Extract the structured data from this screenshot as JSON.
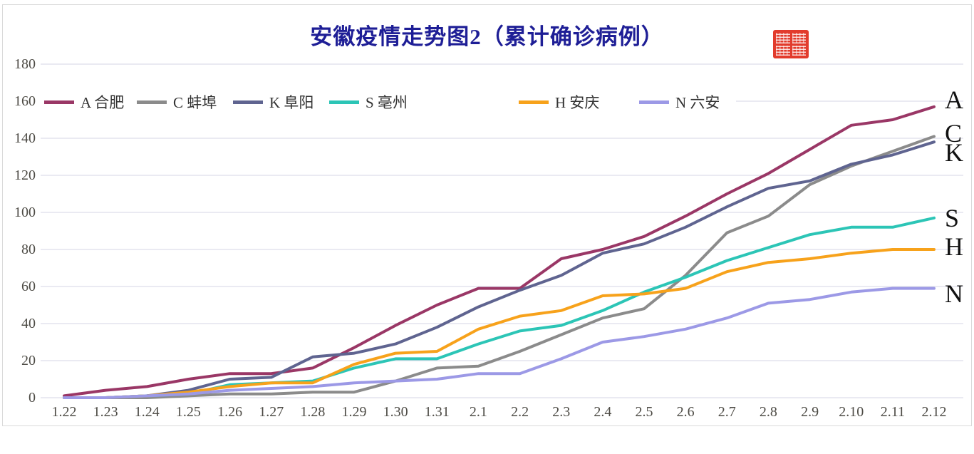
{
  "title": {
    "text": "安徽疫情走势图2（累计确诊病例）"
  },
  "seal": {
    "color": "#e23b2c"
  },
  "colors": {
    "grid": "#d5d5e4",
    "axis_text": "#4d4b45",
    "title": "#1e1e96"
  },
  "y_axis": {
    "ticks": [
      "180",
      "160",
      "140",
      "120",
      "100",
      "80",
      "60",
      "40",
      "20",
      "0"
    ]
  },
  "chart_data": {
    "type": "line",
    "title": "安徽疫情走势图2（累计确诊病例）",
    "x": [
      "1.22",
      "1.23",
      "1.24",
      "1.25",
      "1.26",
      "1.27",
      "1.28",
      "1.29",
      "1.30",
      "1.31",
      "2.1",
      "2.2",
      "2.3",
      "2.4",
      "2.5",
      "2.6",
      "2.7",
      "2.8",
      "2.9",
      "2.10",
      "2.11",
      "2.12"
    ],
    "ylim": [
      0,
      180
    ],
    "ytick_step": 20,
    "grid": "horizontal",
    "legend_position": "top",
    "series": [
      {
        "end_label": "A",
        "legend": "A 合肥",
        "city": "合肥",
        "color": "#9a3766",
        "values": [
          1,
          4,
          6,
          10,
          13,
          13,
          16,
          27,
          39,
          50,
          59,
          59,
          75,
          80,
          87,
          98,
          110,
          121,
          134,
          147,
          150,
          157
        ]
      },
      {
        "end_label": "C",
        "legend": "C 蚌埠",
        "city": "蚌埠",
        "color": "#8b8b8b",
        "values": [
          0,
          0,
          0,
          1,
          2,
          2,
          3,
          3,
          9,
          16,
          17,
          25,
          34,
          43,
          48,
          66,
          89,
          98,
          115,
          125,
          133,
          141
        ]
      },
      {
        "end_label": "K",
        "legend": "K 阜阳",
        "city": "阜阳",
        "color": "#5f6490",
        "values": [
          0,
          0,
          1,
          4,
          10,
          11,
          22,
          24,
          29,
          38,
          49,
          58,
          66,
          78,
          83,
          92,
          103,
          113,
          117,
          126,
          131,
          138
        ]
      },
      {
        "end_label": "S",
        "legend": "S 亳州",
        "city": "亳州",
        "color": "#2cc5b6",
        "values": [
          0,
          0,
          1,
          2,
          7,
          8,
          9,
          16,
          21,
          21,
          29,
          36,
          39,
          47,
          57,
          65,
          74,
          81,
          88,
          92,
          92,
          97
        ]
      },
      {
        "end_label": "H",
        "legend": "H 安庆",
        "city": "安庆",
        "color": "#f7a21b",
        "values": [
          0,
          0,
          1,
          3,
          6,
          8,
          8,
          18,
          24,
          25,
          37,
          44,
          47,
          55,
          56,
          59,
          68,
          73,
          75,
          78,
          80,
          80
        ]
      },
      {
        "end_label": "N",
        "legend": "N 六安",
        "city": "六安",
        "color": "#9c99e6",
        "values": [
          0,
          0,
          1,
          2,
          4,
          5,
          6,
          8,
          9,
          10,
          13,
          13,
          21,
          30,
          33,
          37,
          43,
          51,
          53,
          57,
          59,
          59
        ]
      }
    ]
  }
}
